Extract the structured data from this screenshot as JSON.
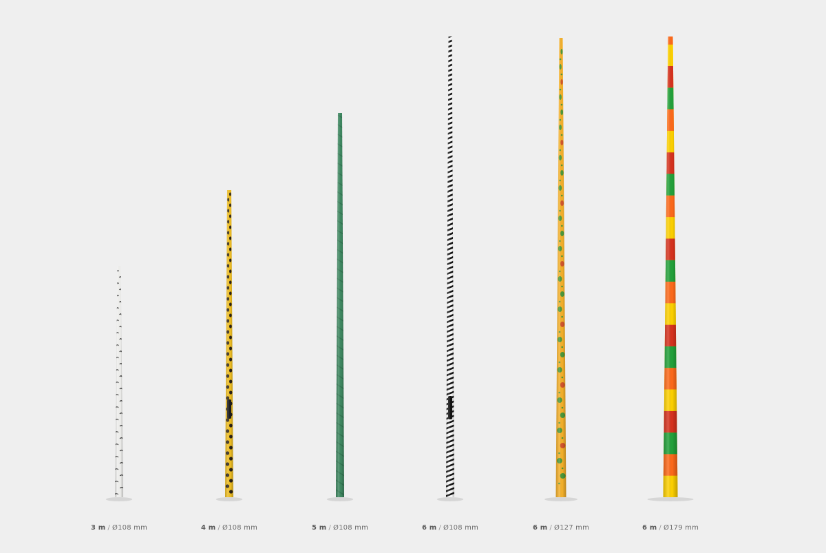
{
  "poles": [
    {
      "id": "birch",
      "pattern": "birch-bark",
      "colors": {
        "base": "#f4f4f2",
        "mark": "#3a3a3a"
      },
      "length": "3 m",
      "sep": "/",
      "diameter": "Ø108 mm"
    },
    {
      "id": "leopard",
      "pattern": "leopard-spots",
      "colors": {
        "base": "#f2c125",
        "mark": "#2a2218"
      },
      "length": "4 m",
      "sep": "/",
      "diameter": "Ø108 mm"
    },
    {
      "id": "marble",
      "pattern": "green-marble",
      "colors": {
        "base": "#3f8a62",
        "mark": "#2c6b4a"
      },
      "length": "5 m",
      "sep": "/",
      "diameter": "Ø108 mm"
    },
    {
      "id": "zebra",
      "pattern": "zebra-stripes",
      "colors": {
        "base": "#ffffff",
        "mark": "#151515"
      },
      "length": "6 m",
      "sep": "/",
      "diameter": "Ø108 mm"
    },
    {
      "id": "dino",
      "pattern": "dinosaurs",
      "colors": {
        "base": "#f7b22a",
        "mark": "#4c9a3a",
        "accent": "#d4562b"
      },
      "length": "6 m",
      "sep": "/",
      "diameter": "Ø127 mm"
    },
    {
      "id": "stripes",
      "pattern": "color-bands",
      "colors": {
        "yellow": "#ffd200",
        "orange": "#ff6a1a",
        "green": "#22a23a",
        "red": "#d8321e"
      },
      "length": "6 m",
      "sep": "/",
      "diameter": "Ø179 mm"
    }
  ]
}
